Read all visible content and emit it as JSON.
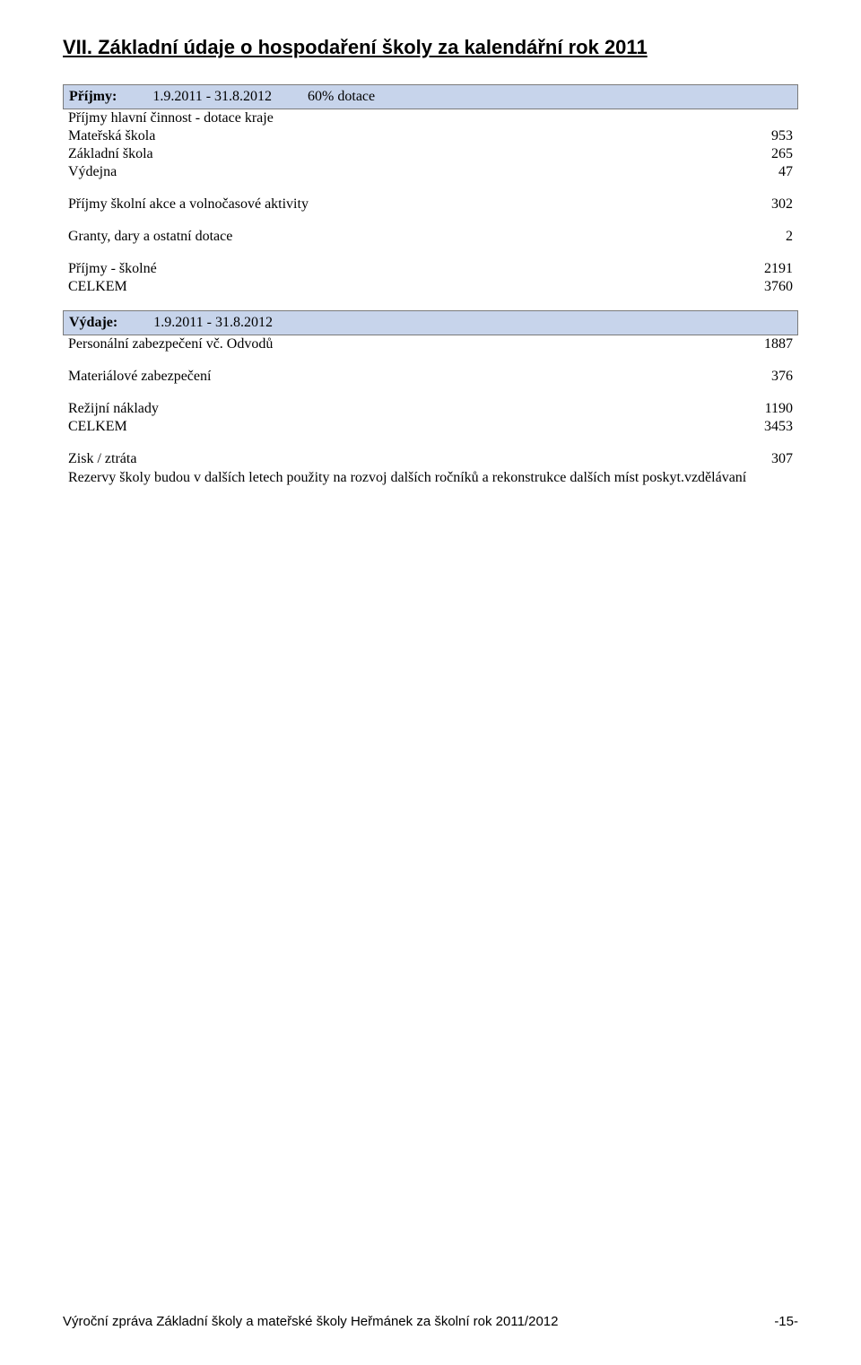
{
  "heading": "VII. Základní údaje o hospodaření školy za kalendářní rok 2011",
  "income_band": {
    "label": "Příjmy:",
    "period": "1.9.2011 - 31.8.2012",
    "extra": "60% dotace"
  },
  "income_section1": {
    "title": "Příjmy hlavní činnost - dotace kraje",
    "rows": [
      {
        "label": "Mateřská škola",
        "value": "953"
      },
      {
        "label": "Základní škola",
        "value": "265"
      },
      {
        "label": "Výdejna",
        "value": "47"
      }
    ]
  },
  "income_section2": {
    "label": "Příjmy školní akce a volnočasové aktivity",
    "value": "302"
  },
  "income_section3": {
    "label": "Granty, dary a ostatní dotace",
    "value": "2"
  },
  "income_section4": {
    "rows": [
      {
        "label": "Příjmy - školné",
        "value": "2191"
      },
      {
        "label": "CELKEM",
        "value": "3760"
      }
    ]
  },
  "expense_band": {
    "label": "Výdaje:",
    "period": "1.9.2011 - 31.8.2012"
  },
  "expense_section1": {
    "label": "Personální zabezpečení vč. Odvodů",
    "value": "1887"
  },
  "expense_section2": {
    "label": "Materiálové zabezpečení",
    "value": "376"
  },
  "expense_section3": {
    "rows": [
      {
        "label": "Režijní náklady",
        "value": "1190"
      },
      {
        "label": "CELKEM",
        "value": "3453"
      }
    ]
  },
  "result": {
    "label": "Zisk / ztráta",
    "value": "307"
  },
  "reserve_note": "Rezervy školy budou v dalších letech použity na rozvoj dalších ročníků a rekonstrukce dalších míst poskyt.vzdělávaní",
  "footer": {
    "text": "Výroční zpráva Základní školy a mateřské školy Heřmánek za školní rok 2011/2012",
    "page": "-15-"
  }
}
